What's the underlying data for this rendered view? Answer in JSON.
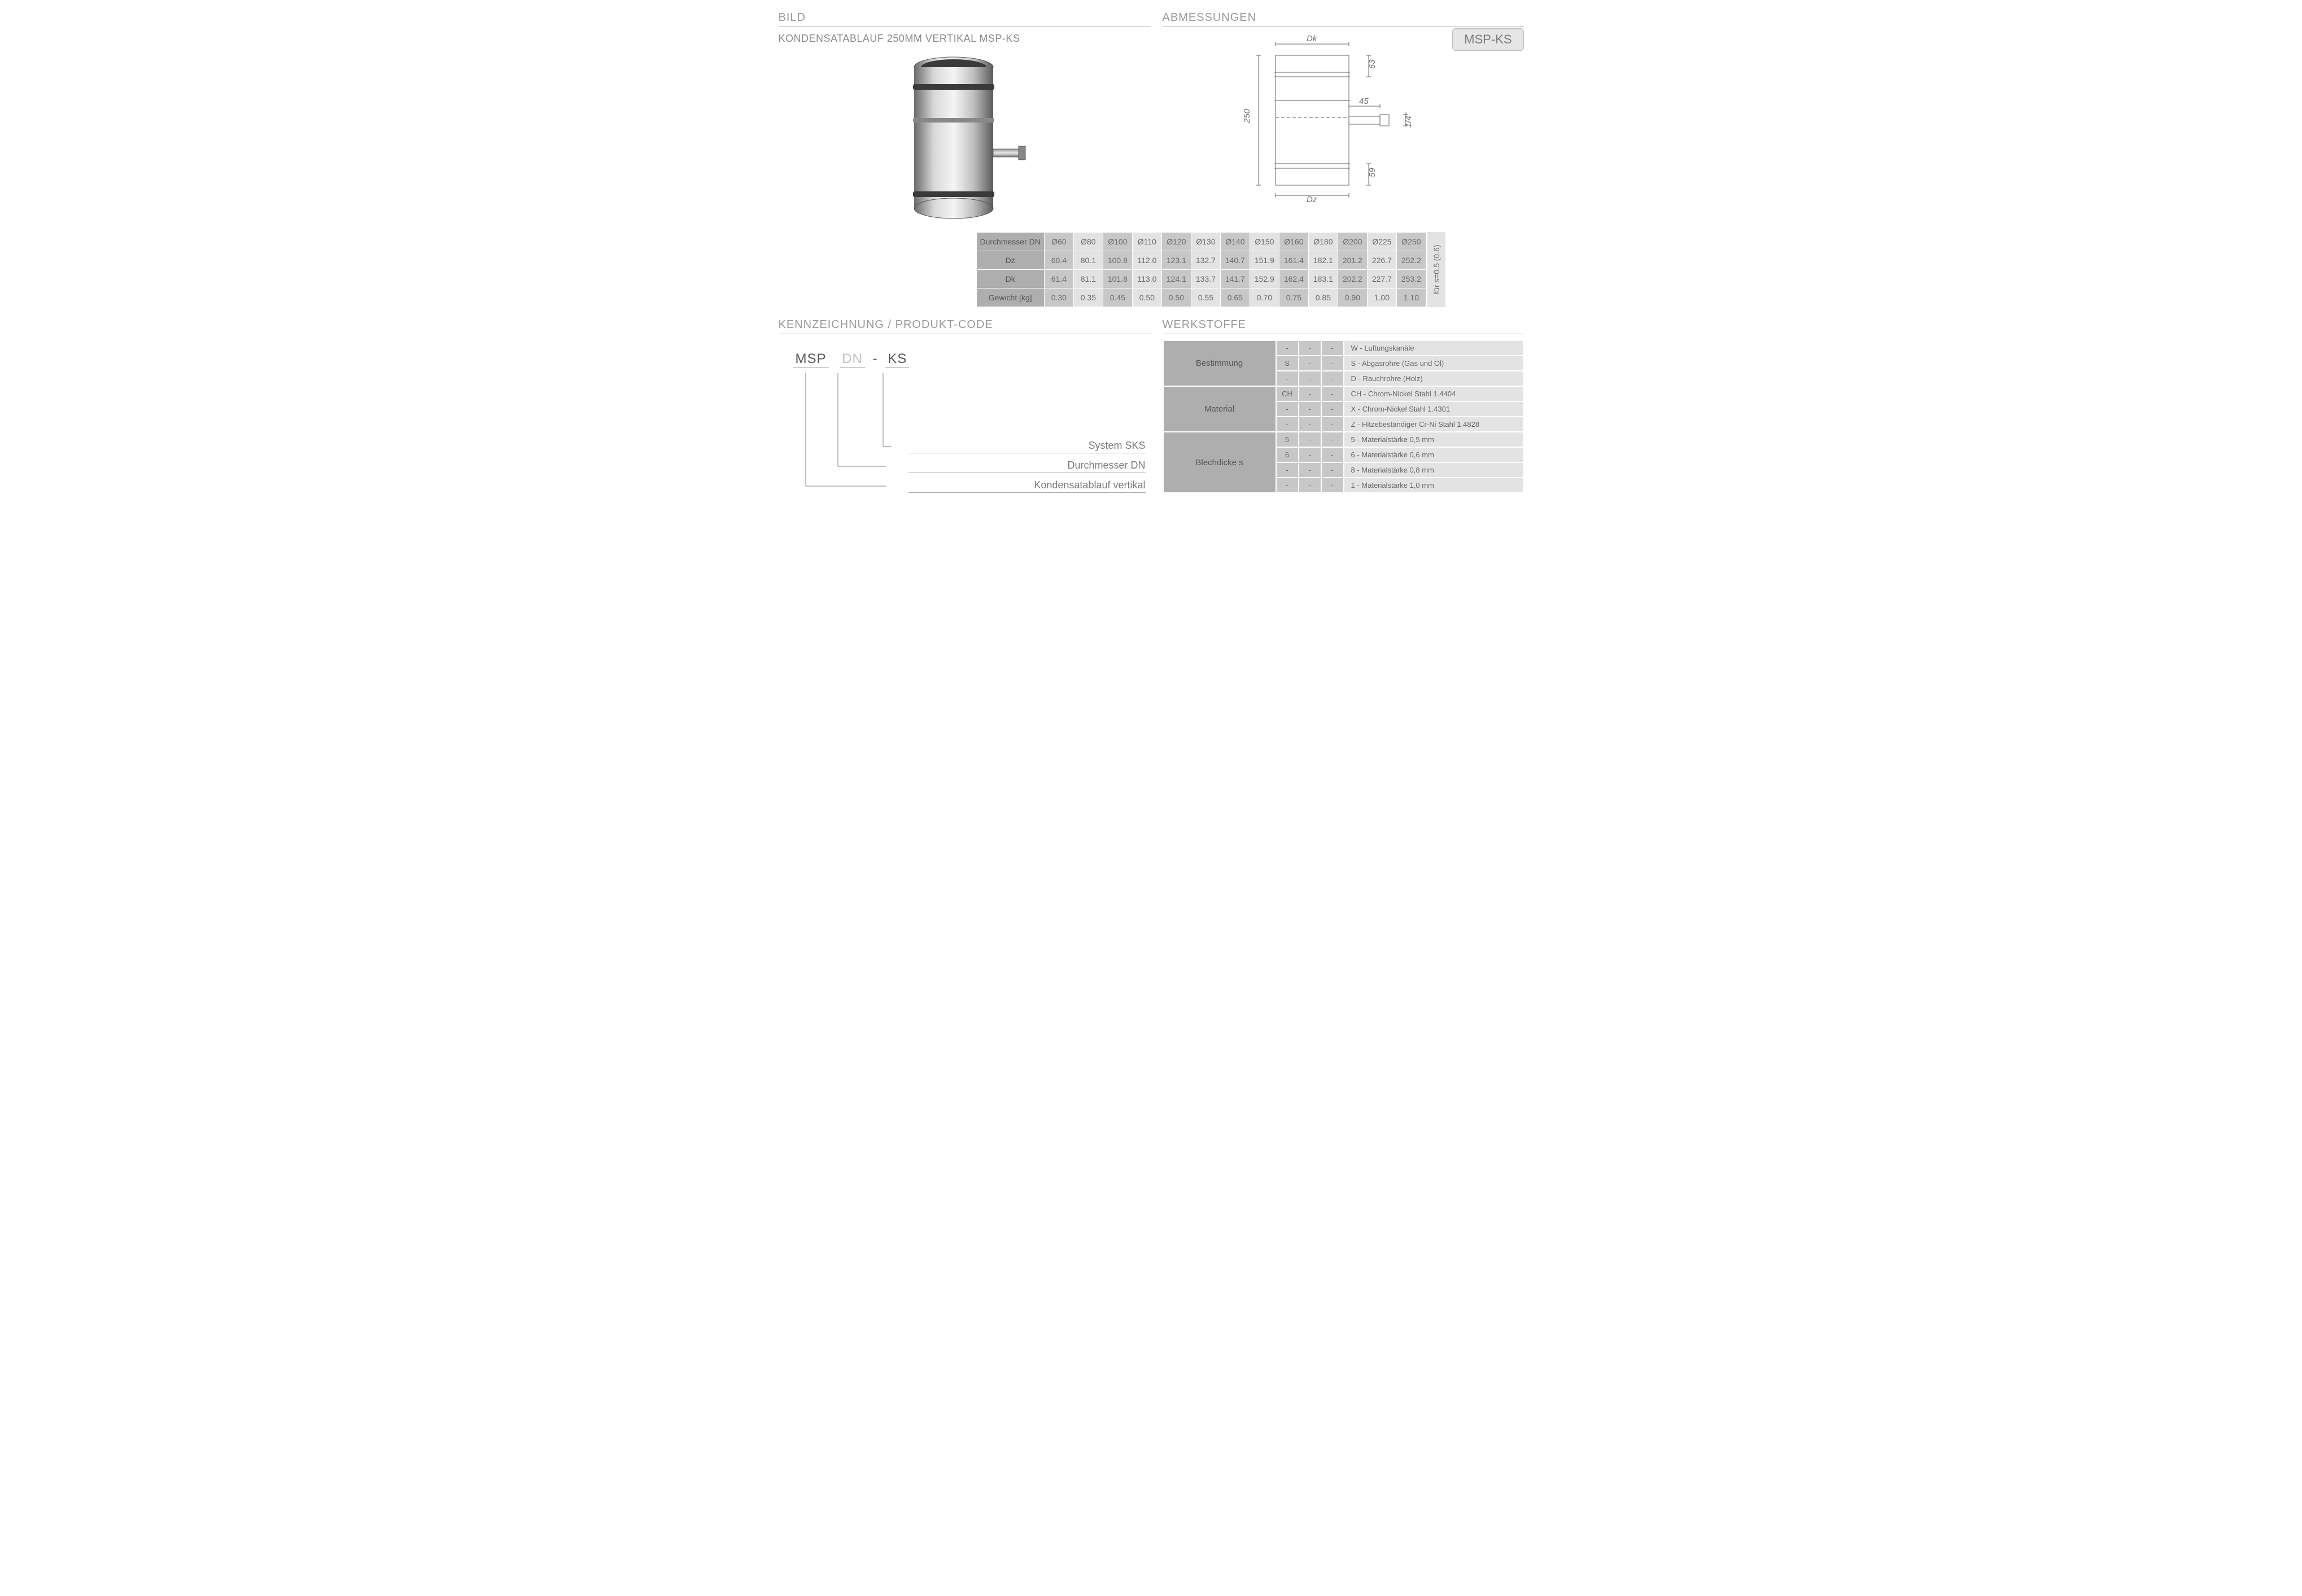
{
  "sections": {
    "bild": "BILD",
    "abmessungen": "ABMESSUNGEN",
    "kennzeichnung": "KENNZEICHNUNG  / PRODUKT-CODE",
    "werkstoffe": "WERKSTOFFE"
  },
  "subtitle": "KONDENSATABLAUF 250MM VERTIKAL  MSP-KS",
  "badge": "MSP-KS",
  "drawing_labels": {
    "Dk": "Dk",
    "Dz": "Dz",
    "h_total": "250",
    "h_top": "63",
    "h_bottom": "59",
    "spout_len": "45",
    "spout_thread": "1/4\""
  },
  "dim_table": {
    "row_labels": [
      "Durchmesser DN",
      "Dz",
      "Dk",
      "Gewicht [kg]"
    ],
    "columns": [
      "Ø60",
      "Ø80",
      "Ø100",
      "Ø110",
      "Ø120",
      "Ø130",
      "Ø140",
      "Ø150",
      "Ø160",
      "Ø180",
      "Ø200",
      "Ø225",
      "Ø250"
    ],
    "rows": [
      [
        "60.4",
        "80.1",
        "100.8",
        "112.0",
        "123.1",
        "132.7",
        "140.7",
        "151.9",
        "161.4",
        "182.1",
        "201.2",
        "226.7",
        "252.2"
      ],
      [
        "61.4",
        "81.1",
        "101.8",
        "113.0",
        "124.1",
        "133.7",
        "141.7",
        "152.9",
        "162.4",
        "183.1",
        "202.2",
        "227.7",
        "253.2"
      ],
      [
        "0.30",
        "0.35",
        "0.45",
        "0.50",
        "0.50",
        "0.55",
        "0.65",
        "0.70",
        "0.75",
        "0.85",
        "0.90",
        "1.00",
        "1.10"
      ]
    ],
    "side_note": "für s=0.5 (0.6)"
  },
  "product_code": {
    "seg1": "MSP",
    "seg2": "DN",
    "sep": "-",
    "seg3": "KS",
    "lines": [
      "System SKS",
      "Durchmesser DN",
      "Kondensatablauf  vertikal"
    ]
  },
  "werkstoffe": {
    "groups": [
      {
        "cat": "Bestimmung",
        "rows": [
          {
            "codes": [
              "-",
              "-",
              "-"
            ],
            "desc": "W - Luftungskanäle"
          },
          {
            "codes": [
              "S",
              "-",
              "-"
            ],
            "desc": "S  - Abgasrohre (Gas und Öl)"
          },
          {
            "codes": [
              "-",
              "-",
              "-"
            ],
            "desc": "D  - Rauchrohre (Holz)"
          }
        ]
      },
      {
        "cat": "Material",
        "rows": [
          {
            "codes": [
              "CH",
              "-",
              "-"
            ],
            "desc": "CH - Chrom-Nickel Stahl  1.4404"
          },
          {
            "codes": [
              "-",
              "-",
              "-"
            ],
            "desc": "X   - Chrom-Nickel Stahl  1.4301"
          },
          {
            "codes": [
              "-",
              "-",
              "-"
            ],
            "desc": "Z   - Hitzebeständiger Cr-Ni Stahl 1.4828"
          }
        ]
      },
      {
        "cat": "Blechdicke s",
        "rows": [
          {
            "codes": [
              "5",
              "-",
              "-"
            ],
            "desc": "5 - Materialstärke 0,5 mm"
          },
          {
            "codes": [
              "6",
              "-",
              "-"
            ],
            "desc": "6 - Materialstärke 0,6 mm"
          },
          {
            "codes": [
              "-",
              "-",
              "-"
            ],
            "desc": "8 - Materialstärke 0,8 mm"
          },
          {
            "codes": [
              "-",
              "-",
              "-"
            ],
            "desc": "1  - Materialstärke 1,0 mm"
          }
        ]
      }
    ]
  },
  "colors": {
    "header_grey": "#aeaeae",
    "cell_dark": "#c7c7c7",
    "cell_light": "#e3e3e3",
    "text": "#6a6a6a",
    "line": "#808080"
  }
}
